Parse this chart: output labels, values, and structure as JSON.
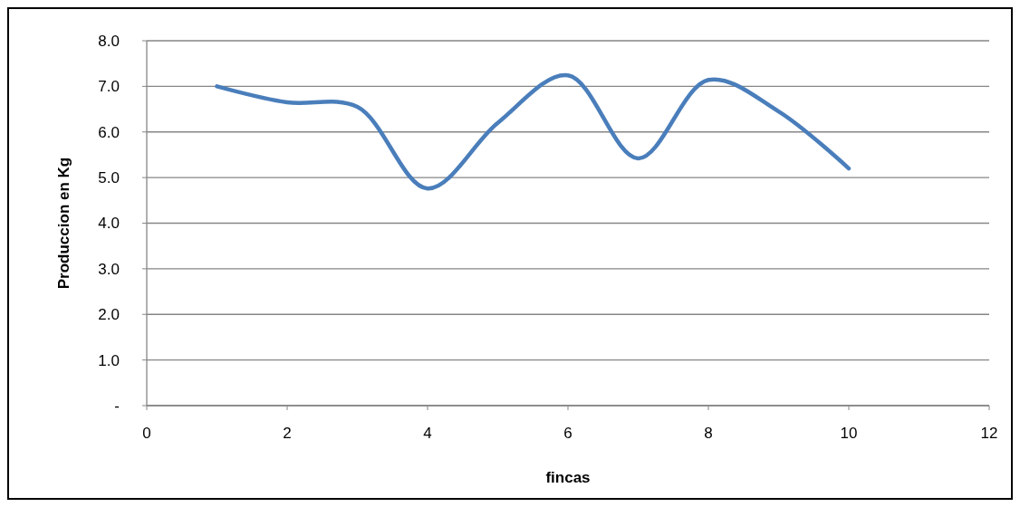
{
  "chart_data": {
    "type": "line",
    "xlabel": "fincas",
    "ylabel": "Produccion en Kg",
    "x": [
      1,
      2,
      3,
      4,
      5,
      6,
      7,
      8,
      9,
      10
    ],
    "series": [
      {
        "color": "#4a7ebb",
        "values": [
          7.0,
          6.65,
          6.55,
          4.76,
          6.2,
          7.24,
          5.42,
          7.14,
          6.45,
          5.2
        ]
      }
    ],
    "xlim": [
      0,
      12
    ],
    "xticks": [
      0,
      2,
      4,
      6,
      8,
      10,
      12
    ],
    "ylim": [
      0,
      8
    ],
    "yticks": [
      {
        "value": 0,
        "label": "-"
      },
      {
        "value": 1,
        "label": "1.0"
      },
      {
        "value": 2,
        "label": "2.0"
      },
      {
        "value": 3,
        "label": "3.0"
      },
      {
        "value": 4,
        "label": "4.0"
      },
      {
        "value": 5,
        "label": "5.0"
      },
      {
        "value": 6,
        "label": "6.0"
      },
      {
        "value": 7,
        "label": "7.0"
      },
      {
        "value": 8,
        "label": "8.0"
      }
    ],
    "grid": "y",
    "marker": "none",
    "line_style": "solid"
  }
}
